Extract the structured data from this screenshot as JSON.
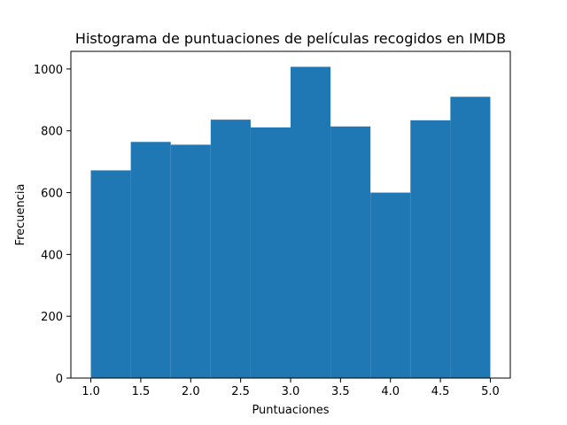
{
  "chart_data": {
    "type": "bar",
    "title": "Histograma de puntuaciones de películas recogidos en IMDB",
    "xlabel": "Puntuaciones",
    "ylabel": "Frecuencia",
    "bin_edges": [
      1.0,
      1.4,
      1.8,
      2.2,
      2.6,
      3.0,
      3.4,
      3.8,
      4.2,
      4.6,
      5.0
    ],
    "values": [
      672,
      764,
      755,
      836,
      811,
      1007,
      814,
      600,
      834,
      910
    ],
    "xlim": [
      0.8,
      5.2
    ],
    "ylim": [
      0,
      1057
    ],
    "xticks": [
      1.0,
      1.5,
      2.0,
      2.5,
      3.0,
      3.5,
      4.0,
      4.5,
      5.0
    ],
    "xtick_labels": [
      "1.0",
      "1.5",
      "2.0",
      "2.5",
      "3.0",
      "3.5",
      "4.0",
      "4.5",
      "5.0"
    ],
    "yticks": [
      0,
      200,
      400,
      600,
      800,
      1000
    ],
    "ytick_labels": [
      "0",
      "200",
      "400",
      "600",
      "800",
      "1000"
    ],
    "bar_color": "#1f77b4",
    "grid": false,
    "legend": false
  }
}
